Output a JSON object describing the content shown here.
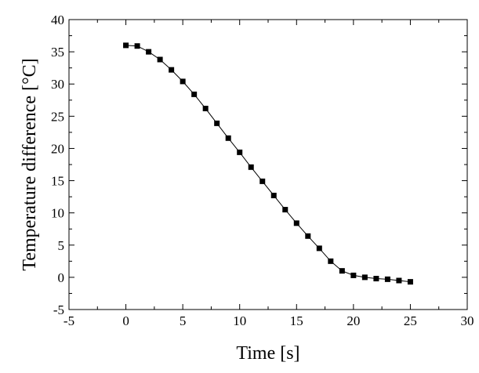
{
  "chart_data": {
    "type": "line",
    "xlabel": "Time [s]",
    "ylabel": "Temperature difference [°C]",
    "xlim": [
      -5,
      30
    ],
    "ylim": [
      -5,
      40
    ],
    "xticks": [
      -5,
      0,
      5,
      10,
      15,
      20,
      25,
      30
    ],
    "yticks": [
      -5,
      0,
      5,
      10,
      15,
      20,
      25,
      30,
      35,
      40
    ],
    "grid": false,
    "marker": "square",
    "series": [
      {
        "x": [
          0,
          1,
          2,
          3,
          4,
          5,
          6,
          7,
          8,
          9,
          10,
          11,
          12,
          13,
          14,
          15,
          16,
          17,
          18,
          19,
          20,
          21,
          22,
          23,
          24,
          25
        ],
        "y": [
          36.0,
          35.9,
          35.0,
          33.8,
          32.2,
          30.4,
          28.4,
          26.2,
          23.9,
          21.6,
          19.4,
          17.1,
          14.9,
          12.7,
          10.5,
          8.4,
          6.4,
          4.5,
          2.5,
          1.0,
          0.3,
          0.0,
          -0.2,
          -0.3,
          -0.5,
          -0.7
        ]
      }
    ]
  }
}
